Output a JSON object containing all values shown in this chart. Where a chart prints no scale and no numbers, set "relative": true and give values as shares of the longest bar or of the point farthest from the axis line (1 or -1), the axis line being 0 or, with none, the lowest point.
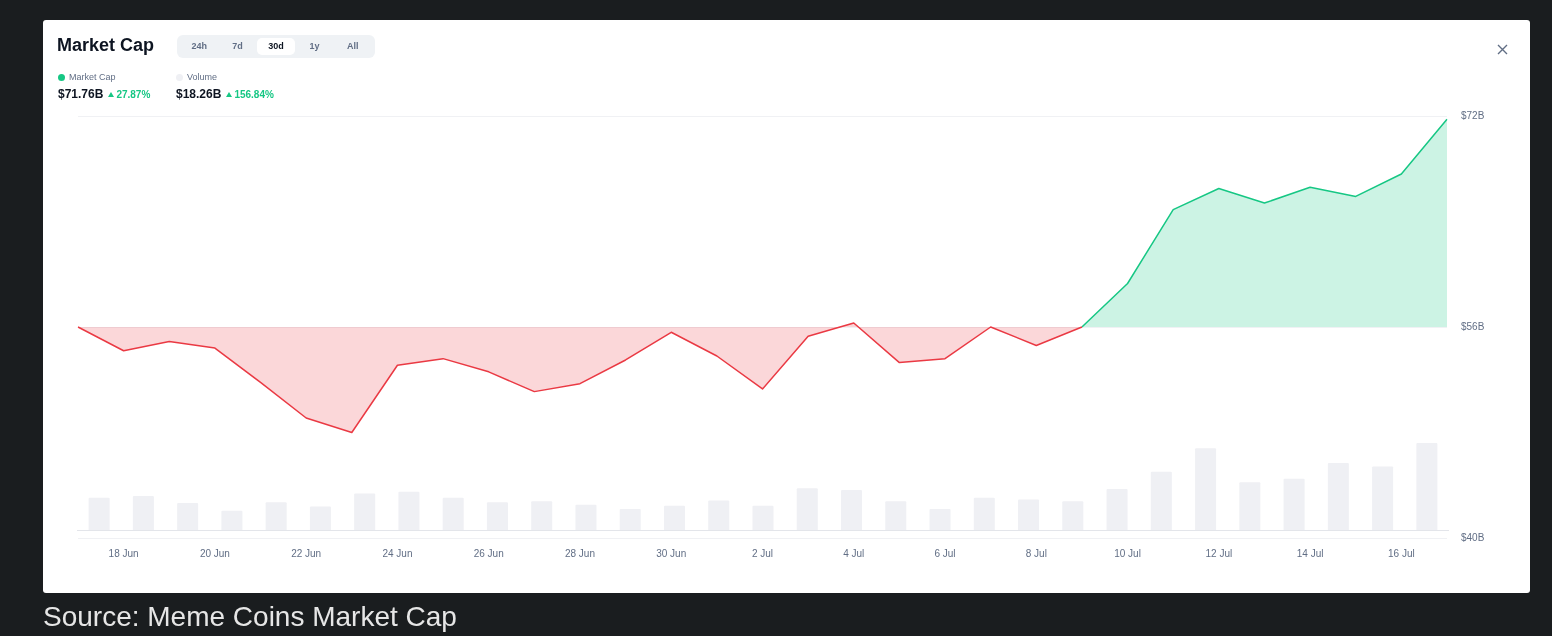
{
  "chart_data": [
    {
      "type": "line",
      "title": "Market Cap",
      "legend": "top left",
      "grid": "y",
      "marker": "none",
      "categories": [
        null,
        "18 Jun",
        null,
        "20 Jun",
        null,
        "22 Jun",
        null,
        "24 Jun",
        null,
        "26 Jun",
        null,
        "28 Jun",
        null,
        "30 Jun",
        null,
        "2 Jul",
        null,
        "4 Jul",
        null,
        "6 Jul",
        null,
        "8 Jul",
        null,
        "10 Jul",
        null,
        "12 Jul",
        null,
        "14 Jul",
        null,
        "16 Jul",
        null
      ],
      "series": [
        {
          "type": "area",
          "color": "#ea3943",
          "values": [
            56.0,
            54.2,
            54.9,
            54.4,
            51.8,
            49.1,
            48.0,
            53.1,
            53.6,
            52.6,
            51.1,
            51.7,
            53.5,
            55.6,
            53.8,
            51.3,
            55.3,
            56.3,
            53.3,
            53.6,
            56.0,
            54.6,
            56.0,
            null,
            null,
            null,
            null,
            null,
            null,
            null,
            null
          ]
        },
        {
          "type": "area",
          "name": "Market Cap",
          "color": "#16c784",
          "values": [
            null,
            null,
            null,
            null,
            null,
            null,
            null,
            null,
            null,
            null,
            null,
            null,
            null,
            null,
            null,
            null,
            null,
            null,
            null,
            null,
            null,
            null,
            56.0,
            59.3,
            64.9,
            66.5,
            65.4,
            66.6,
            65.9,
            67.6,
            71.76
          ]
        }
      ],
      "ylim": [
        40,
        72
      ],
      "yticks": [
        {
          "value": 40,
          "label": "$40B"
        },
        {
          "value": 56,
          "label": "$56B"
        },
        {
          "value": 72,
          "label": "$72B"
        }
      ],
      "annotations": [
        "24h",
        "7d",
        "30d",
        "1y",
        "All",
        "$71.76B",
        "27.87%",
        "$18.26B",
        "156.84%",
        "Source: Meme Coins Market Cap"
      ]
    },
    {
      "type": "bar",
      "relative": true,
      "legend": "top left",
      "categories": [
        null,
        null,
        null,
        null,
        null,
        null,
        null,
        null,
        null,
        null,
        null,
        null,
        null,
        null,
        null,
        null,
        null,
        null,
        null,
        null,
        null,
        null,
        null,
        null,
        null,
        null,
        null,
        null,
        null,
        null,
        null
      ],
      "series": [
        {
          "name": "Volume",
          "color": "#eff0f4",
          "values": [
            0.37,
            0.39,
            0.31,
            0.22,
            0.32,
            0.27,
            0.42,
            0.44,
            0.37,
            0.32,
            0.33,
            0.29,
            0.24,
            0.28,
            0.34,
            0.28,
            0.48,
            0.46,
            0.33,
            0.24,
            0.37,
            0.35,
            0.33,
            0.47,
            0.67,
            0.94,
            0.55,
            0.59,
            0.77,
            0.73,
            1
          ]
        }
      ]
    }
  ]
}
